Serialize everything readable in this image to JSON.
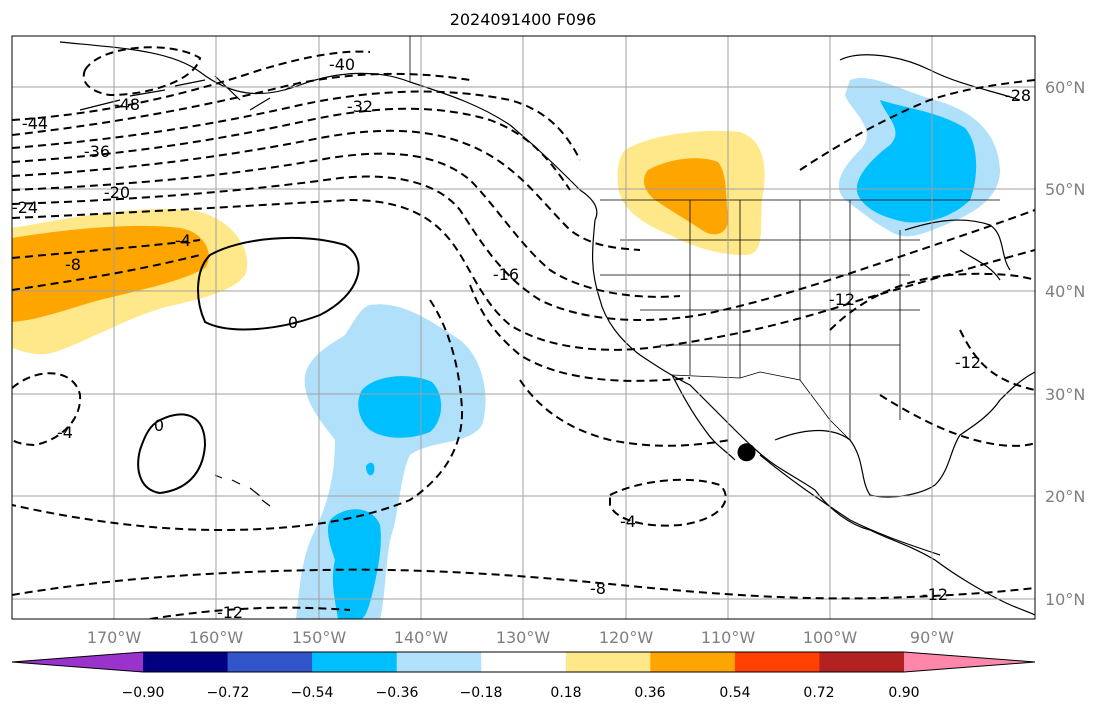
{
  "title": "2024091400 F096",
  "map": {
    "extent": {
      "lon": [
        -180,
        -80
      ],
      "lat": [
        8,
        65
      ]
    },
    "lon_ticks": [
      "170°W",
      "160°W",
      "150°W",
      "140°W",
      "130°W",
      "120°W",
      "110°W",
      "100°W",
      "90°W"
    ],
    "lat_ticks": [
      "10°N",
      "20°N",
      "30°N",
      "40°N",
      "50°N",
      "60°N"
    ],
    "marker": {
      "lon": -108.2,
      "lat": 24.3,
      "color": "#000000"
    },
    "contour_labels": [
      "-48",
      "-44",
      "-40",
      "-36",
      "-32",
      "-28",
      "-24",
      "-20",
      "-16",
      "-12",
      "-12",
      "-12",
      "-12",
      "-8",
      "-8",
      "-4",
      "-4",
      "-4",
      "0",
      "0"
    ],
    "contour_style": {
      "negative": "dashed",
      "zero": "solid"
    }
  },
  "colorbar": {
    "ticks": [
      "−0.90",
      "−0.72",
      "−0.54",
      "−0.36",
      "−0.18",
      "0.18",
      "0.36",
      "0.54",
      "0.72",
      "0.90"
    ],
    "colors": [
      "#9933cc",
      "#000080",
      "#3355cc",
      "#00bfff",
      "#b0e0fa",
      "#ffffff",
      "#ffe88a",
      "#ffa500",
      "#ff4000",
      "#b22222",
      "#ff88aa"
    ],
    "extend": "both"
  }
}
